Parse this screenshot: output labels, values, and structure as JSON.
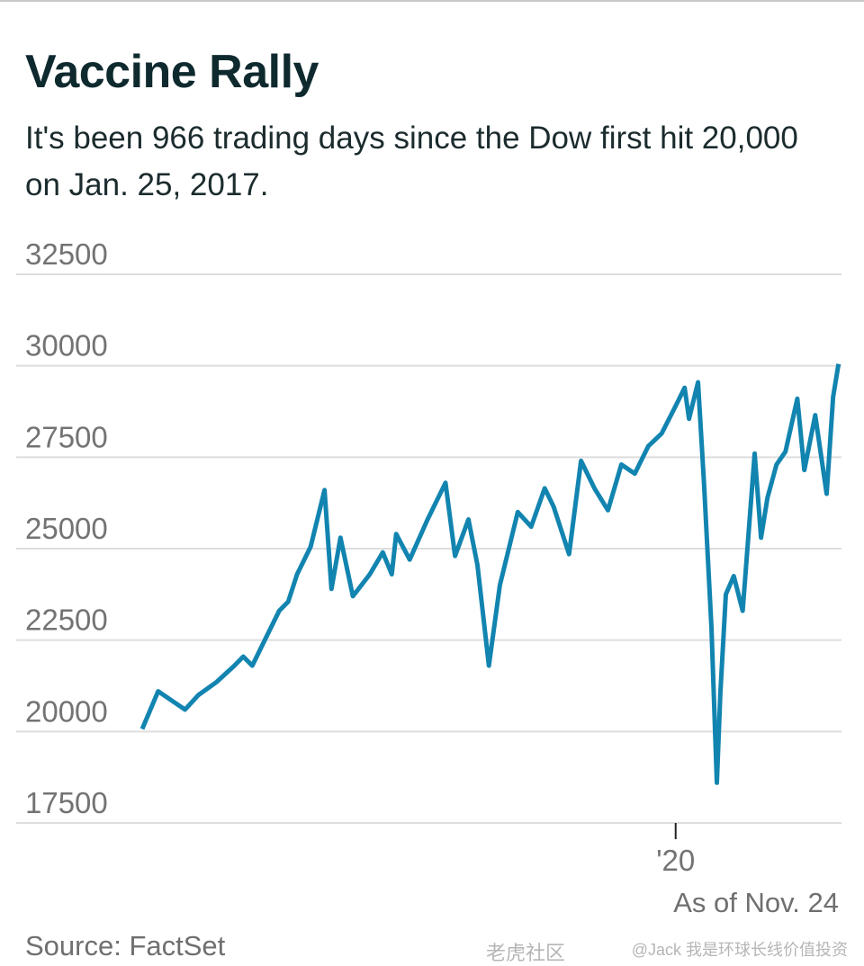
{
  "title": "Vaccine Rally",
  "subtitle": "It's been 966 trading days since the Dow first hit 20,000 on Jan. 25, 2017.",
  "source": "Source: FactSet",
  "as_of": "As of Nov. 24",
  "watermark": {
    "line1": "老虎社区",
    "line2": "@Jack 我是环球长线价值投资"
  },
  "colors": {
    "line": "#1284b0",
    "grid": "#dedede",
    "title": "#0f2a2e",
    "tick": "#737373"
  },
  "chart_data": {
    "type": "line",
    "title": "Vaccine Rally",
    "subtitle": "It's been 966 trading days since the Dow first hit 20,000 on Jan. 25, 2017.",
    "xlabel": "",
    "ylabel": "",
    "ylim": [
      17500,
      32500
    ],
    "yticks": [
      17500,
      20000,
      22500,
      25000,
      27500,
      30000,
      32500
    ],
    "ytick_labels": [
      "17500",
      "20000",
      "22500",
      "25000",
      "27500",
      "30000",
      "32500"
    ],
    "xticks": [
      {
        "date": "2020-01-01",
        "label": "'20"
      }
    ],
    "grid": true,
    "legend": "none",
    "series": [
      {
        "x": [
          "2017-01-25",
          "2017-02-26",
          "2017-03-25",
          "2017-04-21",
          "2017-05-18",
          "2017-06-23",
          "2017-07-29",
          "2017-08-16",
          "2017-09-03",
          "2017-09-30",
          "2017-10-27",
          "2017-11-14",
          "2017-12-02",
          "2017-12-29",
          "2018-01-26",
          "2018-02-09",
          "2018-02-27",
          "2018-03-24",
          "2018-04-27",
          "2018-05-23",
          "2018-06-10",
          "2018-06-19",
          "2018-07-16",
          "2018-08-21",
          "2018-09-26",
          "2018-10-15",
          "2018-11-11",
          "2018-11-29",
          "2018-12-22",
          "2019-01-13",
          "2019-02-18",
          "2019-03-17",
          "2019-04-13",
          "2019-05-01",
          "2019-06-01",
          "2019-06-25",
          "2019-07-22",
          "2019-08-18",
          "2019-09-14",
          "2019-10-11",
          "2019-11-07",
          "2019-12-04",
          "2020-01-01",
          "2020-01-19",
          "2020-01-28",
          "2020-02-15",
          "2020-02-27",
          "2020-03-13",
          "2020-03-24",
          "2020-03-31",
          "2020-04-11",
          "2020-04-27",
          "2020-05-15",
          "2020-06-08",
          "2020-06-21",
          "2020-07-04",
          "2020-07-22",
          "2020-08-09",
          "2020-09-02",
          "2020-09-16",
          "2020-10-08",
          "2020-10-31",
          "2020-11-13",
          "2020-11-24"
        ],
        "y": [
          20070,
          21100,
          20850,
          20600,
          21000,
          21350,
          21800,
          22050,
          21800,
          22550,
          23300,
          23550,
          24300,
          25050,
          26600,
          23900,
          25300,
          23700,
          24300,
          24900,
          24300,
          25400,
          24700,
          25800,
          26800,
          24800,
          25800,
          24550,
          21800,
          24000,
          26000,
          25600,
          26650,
          26150,
          24850,
          27400,
          26650,
          26050,
          27300,
          27050,
          27800,
          28150,
          28900,
          29400,
          28550,
          29550,
          26800,
          22850,
          18600,
          21050,
          23750,
          24250,
          23300,
          27600,
          25300,
          26400,
          27300,
          27650,
          29100,
          27150,
          28650,
          26500,
          29150,
          30050
        ]
      }
    ]
  }
}
